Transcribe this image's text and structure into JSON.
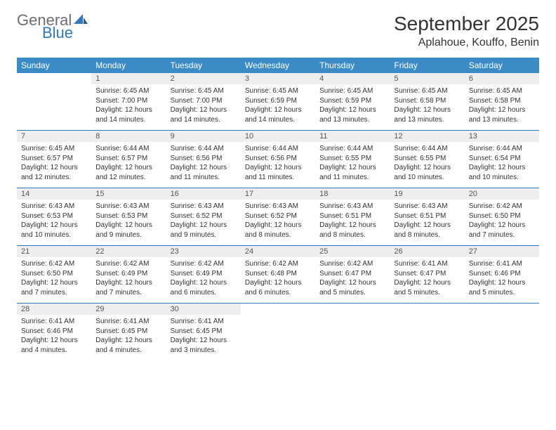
{
  "logo": {
    "general": "General",
    "blue": "Blue"
  },
  "colors": {
    "header_bg": "#3b8bc7",
    "header_text": "#ffffff",
    "daynum_bg": "#eeeeee",
    "row_border": "#2f7abf",
    "logo_gray": "#6d6e71",
    "logo_blue": "#2f7abf",
    "body_text": "#333333"
  },
  "title": "September 2025",
  "location": "Aplahoue, Kouffo, Benin",
  "weekdays": [
    "Sunday",
    "Monday",
    "Tuesday",
    "Wednesday",
    "Thursday",
    "Friday",
    "Saturday"
  ],
  "weeks": [
    [
      {
        "n": "",
        "sr": "",
        "ss": "",
        "dl": ""
      },
      {
        "n": "1",
        "sr": "Sunrise: 6:45 AM",
        "ss": "Sunset: 7:00 PM",
        "dl": "Daylight: 12 hours and 14 minutes."
      },
      {
        "n": "2",
        "sr": "Sunrise: 6:45 AM",
        "ss": "Sunset: 7:00 PM",
        "dl": "Daylight: 12 hours and 14 minutes."
      },
      {
        "n": "3",
        "sr": "Sunrise: 6:45 AM",
        "ss": "Sunset: 6:59 PM",
        "dl": "Daylight: 12 hours and 14 minutes."
      },
      {
        "n": "4",
        "sr": "Sunrise: 6:45 AM",
        "ss": "Sunset: 6:59 PM",
        "dl": "Daylight: 12 hours and 13 minutes."
      },
      {
        "n": "5",
        "sr": "Sunrise: 6:45 AM",
        "ss": "Sunset: 6:58 PM",
        "dl": "Daylight: 12 hours and 13 minutes."
      },
      {
        "n": "6",
        "sr": "Sunrise: 6:45 AM",
        "ss": "Sunset: 6:58 PM",
        "dl": "Daylight: 12 hours and 13 minutes."
      }
    ],
    [
      {
        "n": "7",
        "sr": "Sunrise: 6:45 AM",
        "ss": "Sunset: 6:57 PM",
        "dl": "Daylight: 12 hours and 12 minutes."
      },
      {
        "n": "8",
        "sr": "Sunrise: 6:44 AM",
        "ss": "Sunset: 6:57 PM",
        "dl": "Daylight: 12 hours and 12 minutes."
      },
      {
        "n": "9",
        "sr": "Sunrise: 6:44 AM",
        "ss": "Sunset: 6:56 PM",
        "dl": "Daylight: 12 hours and 11 minutes."
      },
      {
        "n": "10",
        "sr": "Sunrise: 6:44 AM",
        "ss": "Sunset: 6:56 PM",
        "dl": "Daylight: 12 hours and 11 minutes."
      },
      {
        "n": "11",
        "sr": "Sunrise: 6:44 AM",
        "ss": "Sunset: 6:55 PM",
        "dl": "Daylight: 12 hours and 11 minutes."
      },
      {
        "n": "12",
        "sr": "Sunrise: 6:44 AM",
        "ss": "Sunset: 6:55 PM",
        "dl": "Daylight: 12 hours and 10 minutes."
      },
      {
        "n": "13",
        "sr": "Sunrise: 6:44 AM",
        "ss": "Sunset: 6:54 PM",
        "dl": "Daylight: 12 hours and 10 minutes."
      }
    ],
    [
      {
        "n": "14",
        "sr": "Sunrise: 6:43 AM",
        "ss": "Sunset: 6:53 PM",
        "dl": "Daylight: 12 hours and 10 minutes."
      },
      {
        "n": "15",
        "sr": "Sunrise: 6:43 AM",
        "ss": "Sunset: 6:53 PM",
        "dl": "Daylight: 12 hours and 9 minutes."
      },
      {
        "n": "16",
        "sr": "Sunrise: 6:43 AM",
        "ss": "Sunset: 6:52 PM",
        "dl": "Daylight: 12 hours and 9 minutes."
      },
      {
        "n": "17",
        "sr": "Sunrise: 6:43 AM",
        "ss": "Sunset: 6:52 PM",
        "dl": "Daylight: 12 hours and 8 minutes."
      },
      {
        "n": "18",
        "sr": "Sunrise: 6:43 AM",
        "ss": "Sunset: 6:51 PM",
        "dl": "Daylight: 12 hours and 8 minutes."
      },
      {
        "n": "19",
        "sr": "Sunrise: 6:43 AM",
        "ss": "Sunset: 6:51 PM",
        "dl": "Daylight: 12 hours and 8 minutes."
      },
      {
        "n": "20",
        "sr": "Sunrise: 6:42 AM",
        "ss": "Sunset: 6:50 PM",
        "dl": "Daylight: 12 hours and 7 minutes."
      }
    ],
    [
      {
        "n": "21",
        "sr": "Sunrise: 6:42 AM",
        "ss": "Sunset: 6:50 PM",
        "dl": "Daylight: 12 hours and 7 minutes."
      },
      {
        "n": "22",
        "sr": "Sunrise: 6:42 AM",
        "ss": "Sunset: 6:49 PM",
        "dl": "Daylight: 12 hours and 7 minutes."
      },
      {
        "n": "23",
        "sr": "Sunrise: 6:42 AM",
        "ss": "Sunset: 6:49 PM",
        "dl": "Daylight: 12 hours and 6 minutes."
      },
      {
        "n": "24",
        "sr": "Sunrise: 6:42 AM",
        "ss": "Sunset: 6:48 PM",
        "dl": "Daylight: 12 hours and 6 minutes."
      },
      {
        "n": "25",
        "sr": "Sunrise: 6:42 AM",
        "ss": "Sunset: 6:47 PM",
        "dl": "Daylight: 12 hours and 5 minutes."
      },
      {
        "n": "26",
        "sr": "Sunrise: 6:41 AM",
        "ss": "Sunset: 6:47 PM",
        "dl": "Daylight: 12 hours and 5 minutes."
      },
      {
        "n": "27",
        "sr": "Sunrise: 6:41 AM",
        "ss": "Sunset: 6:46 PM",
        "dl": "Daylight: 12 hours and 5 minutes."
      }
    ],
    [
      {
        "n": "28",
        "sr": "Sunrise: 6:41 AM",
        "ss": "Sunset: 6:46 PM",
        "dl": "Daylight: 12 hours and 4 minutes."
      },
      {
        "n": "29",
        "sr": "Sunrise: 6:41 AM",
        "ss": "Sunset: 6:45 PM",
        "dl": "Daylight: 12 hours and 4 minutes."
      },
      {
        "n": "30",
        "sr": "Sunrise: 6:41 AM",
        "ss": "Sunset: 6:45 PM",
        "dl": "Daylight: 12 hours and 3 minutes."
      },
      {
        "n": "",
        "sr": "",
        "ss": "",
        "dl": ""
      },
      {
        "n": "",
        "sr": "",
        "ss": "",
        "dl": ""
      },
      {
        "n": "",
        "sr": "",
        "ss": "",
        "dl": ""
      },
      {
        "n": "",
        "sr": "",
        "ss": "",
        "dl": ""
      }
    ]
  ]
}
